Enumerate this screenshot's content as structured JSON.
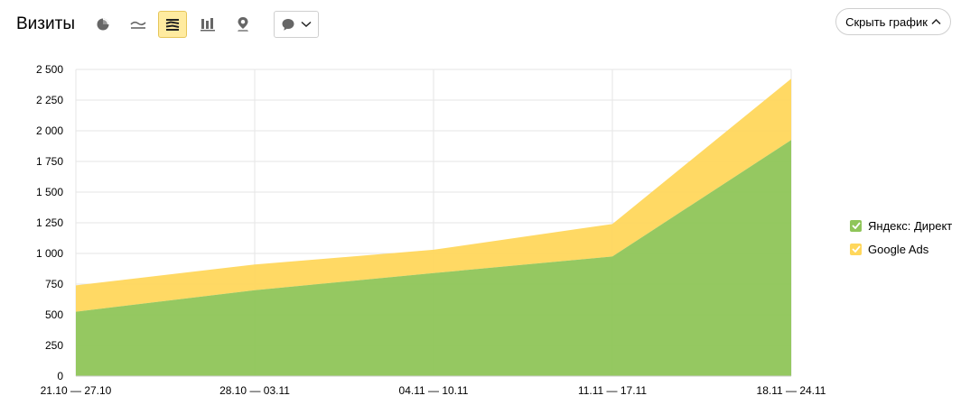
{
  "header": {
    "title": "Визиты",
    "hide_chart_label": "Скрыть график"
  },
  "toolbar": {
    "chart_types": [
      {
        "icon": "pie-chart-icon",
        "active": false
      },
      {
        "icon": "line-chart-icon",
        "active": false
      },
      {
        "icon": "stacked-area-icon",
        "active": true
      },
      {
        "icon": "bar-chart-icon",
        "active": false
      },
      {
        "icon": "map-icon",
        "active": false
      }
    ],
    "annotations_icon": "comment-icon"
  },
  "colors": {
    "yandex_direct": "#8fc559",
    "google_ads": "#ffd75c",
    "active_button_bg": "#ffeba0"
  },
  "chart_data": {
    "type": "area",
    "stacked": true,
    "categories": [
      "21.10 — 27.10",
      "28.10 — 03.11",
      "04.11 — 10.11",
      "11.11 — 17.11",
      "18.11 — 24.11"
    ],
    "series": [
      {
        "name": "Яндекс: Директ",
        "values": [
          525,
          700,
          840,
          975,
          1925
        ]
      },
      {
        "name": "Google Ads",
        "values": [
          215,
          210,
          190,
          265,
          500
        ]
      }
    ],
    "ylim": [
      0,
      2500
    ],
    "yticks": [
      0,
      250,
      500,
      750,
      1000,
      1250,
      1500,
      1750,
      2000,
      2250,
      2500
    ],
    "ytick_labels": [
      "0",
      "250",
      "500",
      "750",
      "1 000",
      "1 250",
      "1 500",
      "1 750",
      "2 000",
      "2 250",
      "2 500"
    ],
    "grid": true,
    "legend_position": "right"
  }
}
